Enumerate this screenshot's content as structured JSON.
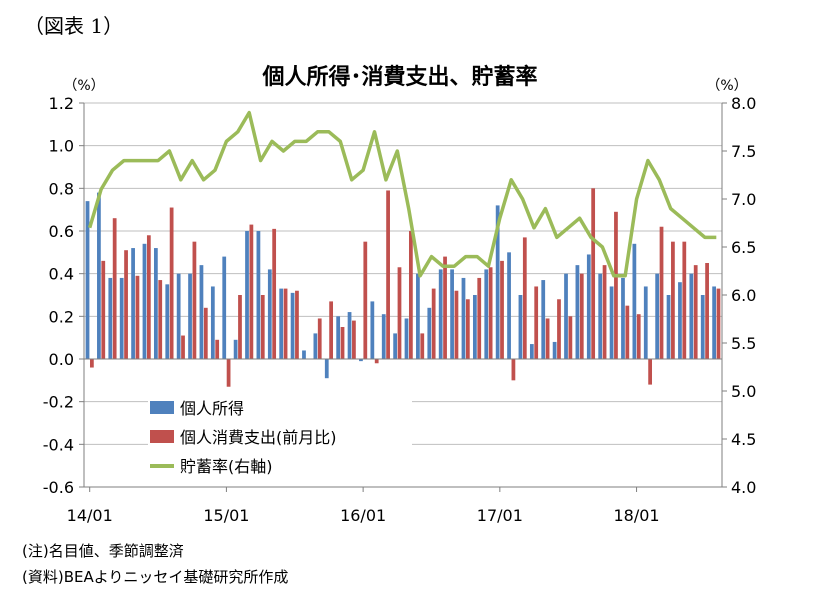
{
  "figure_label": "（図表 1）",
  "notes": {
    "note": "(注)名目値、季節調整済",
    "source": "(資料)BEAよりニッセイ基礎研究所作成"
  },
  "chart_data": {
    "type": "bar",
    "title": "個人所得･消費支出、貯蓄率",
    "left_unit": "（%）",
    "right_unit": "（%）",
    "ylim": [
      -0.6,
      1.2
    ],
    "y_ticks": [
      "1.2",
      "1.0",
      "0.8",
      "0.6",
      "0.4",
      "0.2",
      "0.0",
      "-0.2",
      "-0.4",
      "-0.6"
    ],
    "y2lim": [
      4.0,
      8.0
    ],
    "y2_ticks": [
      "8.0",
      "7.5",
      "7.0",
      "6.5",
      "6.0",
      "5.5",
      "5.0",
      "4.5",
      "4.0"
    ],
    "x_labels": [
      "14/01",
      "15/01",
      "16/01",
      "17/01",
      "18/01"
    ],
    "x_label_month_index": [
      0,
      12,
      24,
      36,
      48
    ],
    "legend_position": "lower-left",
    "grid": "horizontal",
    "series": [
      {
        "name": "個人所得",
        "type": "bar",
        "axis": "left",
        "color": "#4f81bd",
        "values": [
          0.74,
          0.78,
          0.38,
          0.38,
          0.52,
          0.54,
          0.52,
          0.35,
          0.4,
          0.4,
          0.44,
          0.34,
          0.48,
          0.09,
          0.6,
          0.6,
          0.42,
          0.33,
          0.31,
          0.04,
          0.12,
          -0.09,
          0.2,
          0.22,
          -0.01,
          0.27,
          0.21,
          0.12,
          0.19,
          0.4,
          0.24,
          0.42,
          0.42,
          0.38,
          0.3,
          0.42,
          0.72,
          0.5,
          0.3,
          0.07,
          0.37,
          0.08,
          0.4,
          0.44,
          0.49,
          0.4,
          0.34,
          0.38,
          0.54,
          0.34,
          0.4,
          0.3,
          0.36,
          0.4,
          0.3,
          0.34
        ]
      },
      {
        "name": "個人消費支出(前月比)",
        "type": "bar",
        "axis": "left",
        "color": "#c0504d",
        "values": [
          -0.04,
          0.46,
          0.66,
          0.51,
          0.39,
          0.58,
          0.37,
          0.71,
          0.11,
          0.55,
          0.24,
          0.09,
          -0.13,
          0.3,
          0.63,
          0.3,
          0.61,
          0.33,
          0.32,
          0.0,
          0.19,
          0.27,
          0.15,
          0.18,
          0.55,
          -0.02,
          0.79,
          0.43,
          0.6,
          0.12,
          0.33,
          0.48,
          0.32,
          0.28,
          0.38,
          0.43,
          0.46,
          -0.1,
          0.57,
          0.34,
          0.19,
          0.28,
          0.2,
          0.4,
          0.8,
          0.44,
          0.69,
          0.25,
          0.21,
          -0.12,
          0.62,
          0.55,
          0.55,
          0.44,
          0.45,
          0.33
        ]
      },
      {
        "name": "貯蓄率(右軸)",
        "type": "line",
        "axis": "right",
        "color": "#9bbb59",
        "values": [
          6.7,
          7.1,
          7.3,
          7.4,
          7.4,
          7.4,
          7.4,
          7.5,
          7.2,
          7.4,
          7.2,
          7.3,
          7.6,
          7.7,
          7.9,
          7.4,
          7.6,
          7.5,
          7.6,
          7.6,
          7.7,
          7.7,
          7.6,
          7.2,
          7.3,
          7.7,
          7.2,
          7.5,
          6.9,
          6.2,
          6.4,
          6.3,
          6.3,
          6.4,
          6.4,
          6.3,
          6.8,
          7.2,
          7.0,
          6.7,
          6.9,
          6.6,
          6.7,
          6.8,
          6.6,
          6.5,
          6.2,
          6.2,
          7.0,
          7.4,
          7.2,
          6.9,
          6.8,
          6.7,
          6.6,
          6.6
        ]
      }
    ]
  }
}
